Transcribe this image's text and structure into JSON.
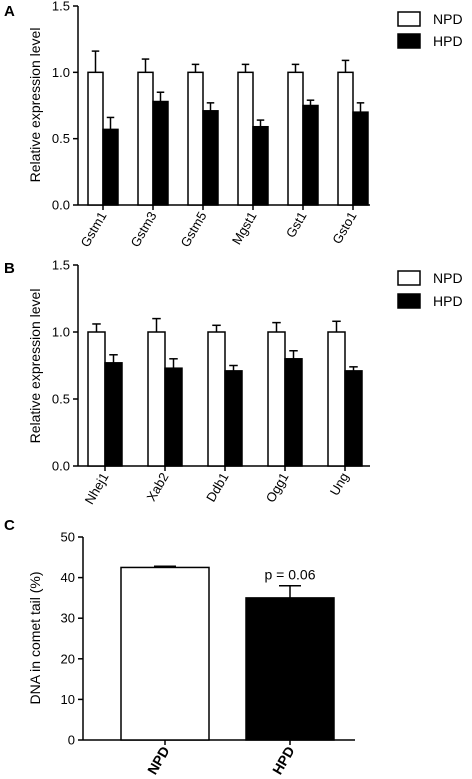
{
  "figure": {
    "panels": [
      "A",
      "B",
      "C"
    ]
  },
  "chart_data": [
    {
      "panel": "A",
      "type": "bar",
      "categories": [
        "Gstm1",
        "Gstm3",
        "Gstm5",
        "Mgst1",
        "Gst1",
        "Gsto1"
      ],
      "series": [
        {
          "name": "NPD",
          "values": [
            1.0,
            1.0,
            1.0,
            1.0,
            1.0,
            1.0
          ],
          "errors": [
            0.16,
            0.1,
            0.06,
            0.06,
            0.06,
            0.09
          ],
          "color": "#ffffff"
        },
        {
          "name": "HPD",
          "values": [
            0.57,
            0.78,
            0.71,
            0.59,
            0.75,
            0.7
          ],
          "errors": [
            0.09,
            0.07,
            0.06,
            0.05,
            0.04,
            0.07
          ],
          "color": "#000000"
        }
      ],
      "ylabel": "Relative expression level",
      "ylim": [
        0,
        1.5
      ],
      "yticks": [
        "0.0",
        "0.5",
        "1.0",
        "1.5"
      ],
      "legend": "top-right",
      "grid": false
    },
    {
      "panel": "B",
      "type": "bar",
      "categories": [
        "Nhej1",
        "Xab2",
        "Ddb1",
        "Ogg1",
        "Ung"
      ],
      "series": [
        {
          "name": "NPD",
          "values": [
            1.0,
            1.0,
            1.0,
            1.0,
            1.0
          ],
          "errors": [
            0.06,
            0.1,
            0.05,
            0.07,
            0.08
          ],
          "color": "#ffffff"
        },
        {
          "name": "HPD",
          "values": [
            0.77,
            0.73,
            0.71,
            0.8,
            0.71
          ],
          "errors": [
            0.06,
            0.07,
            0.04,
            0.06,
            0.03
          ],
          "color": "#000000"
        }
      ],
      "ylabel": "Relative expression level",
      "ylim": [
        0,
        1.5
      ],
      "yticks": [
        "0.0",
        "0.5",
        "1.0",
        "1.5"
      ],
      "legend": "top-right",
      "grid": false
    },
    {
      "panel": "C",
      "type": "bar",
      "categories": [
        "NPD",
        "HPD"
      ],
      "values": [
        42.5,
        35
      ],
      "errors": [
        0.3,
        3
      ],
      "colors": [
        "#ffffff",
        "#000000"
      ],
      "ylabel": "DNA in comet tail (%)",
      "ylim": [
        0,
        50
      ],
      "yticks": [
        "0",
        "10",
        "20",
        "30",
        "40",
        "50"
      ],
      "annotation": "p = 0.06",
      "grid": false
    }
  ]
}
